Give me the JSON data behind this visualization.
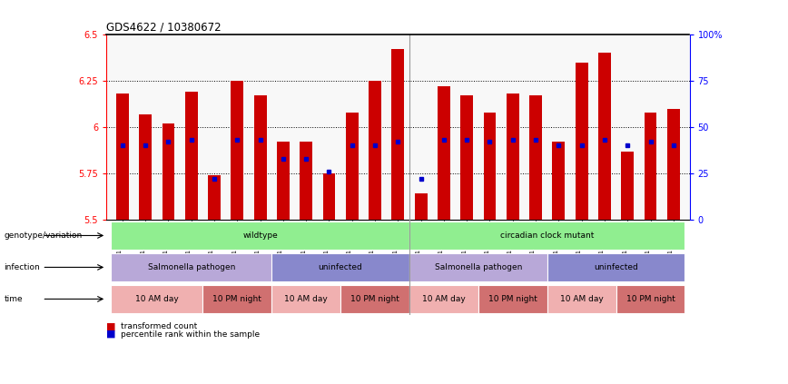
{
  "title": "GDS4622 / 10380672",
  "samples": [
    "GSM1129094",
    "GSM1129095",
    "GSM1129096",
    "GSM1129097",
    "GSM1129098",
    "GSM1129099",
    "GSM1129100",
    "GSM1129082",
    "GSM1129083",
    "GSM1129084",
    "GSM1129085",
    "GSM1129086",
    "GSM1129087",
    "GSM1129101",
    "GSM1129102",
    "GSM1129103",
    "GSM1129104",
    "GSM1129105",
    "GSM1129106",
    "GSM1129088",
    "GSM1129089",
    "GSM1129090",
    "GSM1129091",
    "GSM1129092",
    "GSM1129093"
  ],
  "bar_tops": [
    6.18,
    6.07,
    6.02,
    6.19,
    5.74,
    6.25,
    6.17,
    5.92,
    5.92,
    5.75,
    6.08,
    6.25,
    6.42,
    5.64,
    6.22,
    6.17,
    6.08,
    6.18,
    6.17,
    5.92,
    6.35,
    6.4,
    5.87,
    6.08,
    6.1
  ],
  "percentile_vals": [
    40,
    40,
    42,
    43,
    22,
    43,
    43,
    33,
    33,
    26,
    40,
    40,
    42,
    22,
    43,
    43,
    42,
    43,
    43,
    40,
    40,
    43,
    40,
    42,
    40
  ],
  "ymin": 5.5,
  "ymax": 6.5,
  "bar_color": "#cc0000",
  "dot_color": "#0000cc",
  "genotype_groups": [
    {
      "label": "wildtype",
      "start": 0,
      "end": 13,
      "color": "#90ee90"
    },
    {
      "label": "circadian clock mutant",
      "start": 13,
      "end": 25,
      "color": "#90ee90"
    }
  ],
  "infection_groups": [
    {
      "label": "Salmonella pathogen",
      "start": 0,
      "end": 7,
      "color": "#b8a8d8"
    },
    {
      "label": "uninfected",
      "start": 7,
      "end": 13,
      "color": "#8888cc"
    },
    {
      "label": "Salmonella pathogen",
      "start": 13,
      "end": 19,
      "color": "#b8a8d8"
    },
    {
      "label": "uninfected",
      "start": 19,
      "end": 25,
      "color": "#8888cc"
    }
  ],
  "time_groups": [
    {
      "label": "10 AM day",
      "start": 0,
      "end": 4,
      "color": "#f0b0b0"
    },
    {
      "label": "10 PM night",
      "start": 4,
      "end": 7,
      "color": "#d07070"
    },
    {
      "label": "10 AM day",
      "start": 7,
      "end": 10,
      "color": "#f0b0b0"
    },
    {
      "label": "10 PM night",
      "start": 10,
      "end": 13,
      "color": "#d07070"
    },
    {
      "label": "10 AM day",
      "start": 13,
      "end": 16,
      "color": "#f0b0b0"
    },
    {
      "label": "10 PM night",
      "start": 16,
      "end": 19,
      "color": "#d07070"
    },
    {
      "label": "10 AM day",
      "start": 19,
      "end": 22,
      "color": "#f0b0b0"
    },
    {
      "label": "10 PM night",
      "start": 22,
      "end": 25,
      "color": "#d07070"
    }
  ],
  "row_labels": [
    "genotype/variation",
    "infection",
    "time"
  ],
  "legend_items": [
    {
      "color": "#cc0000",
      "label": "transformed count"
    },
    {
      "color": "#0000cc",
      "label": "percentile rank within the sample"
    }
  ]
}
